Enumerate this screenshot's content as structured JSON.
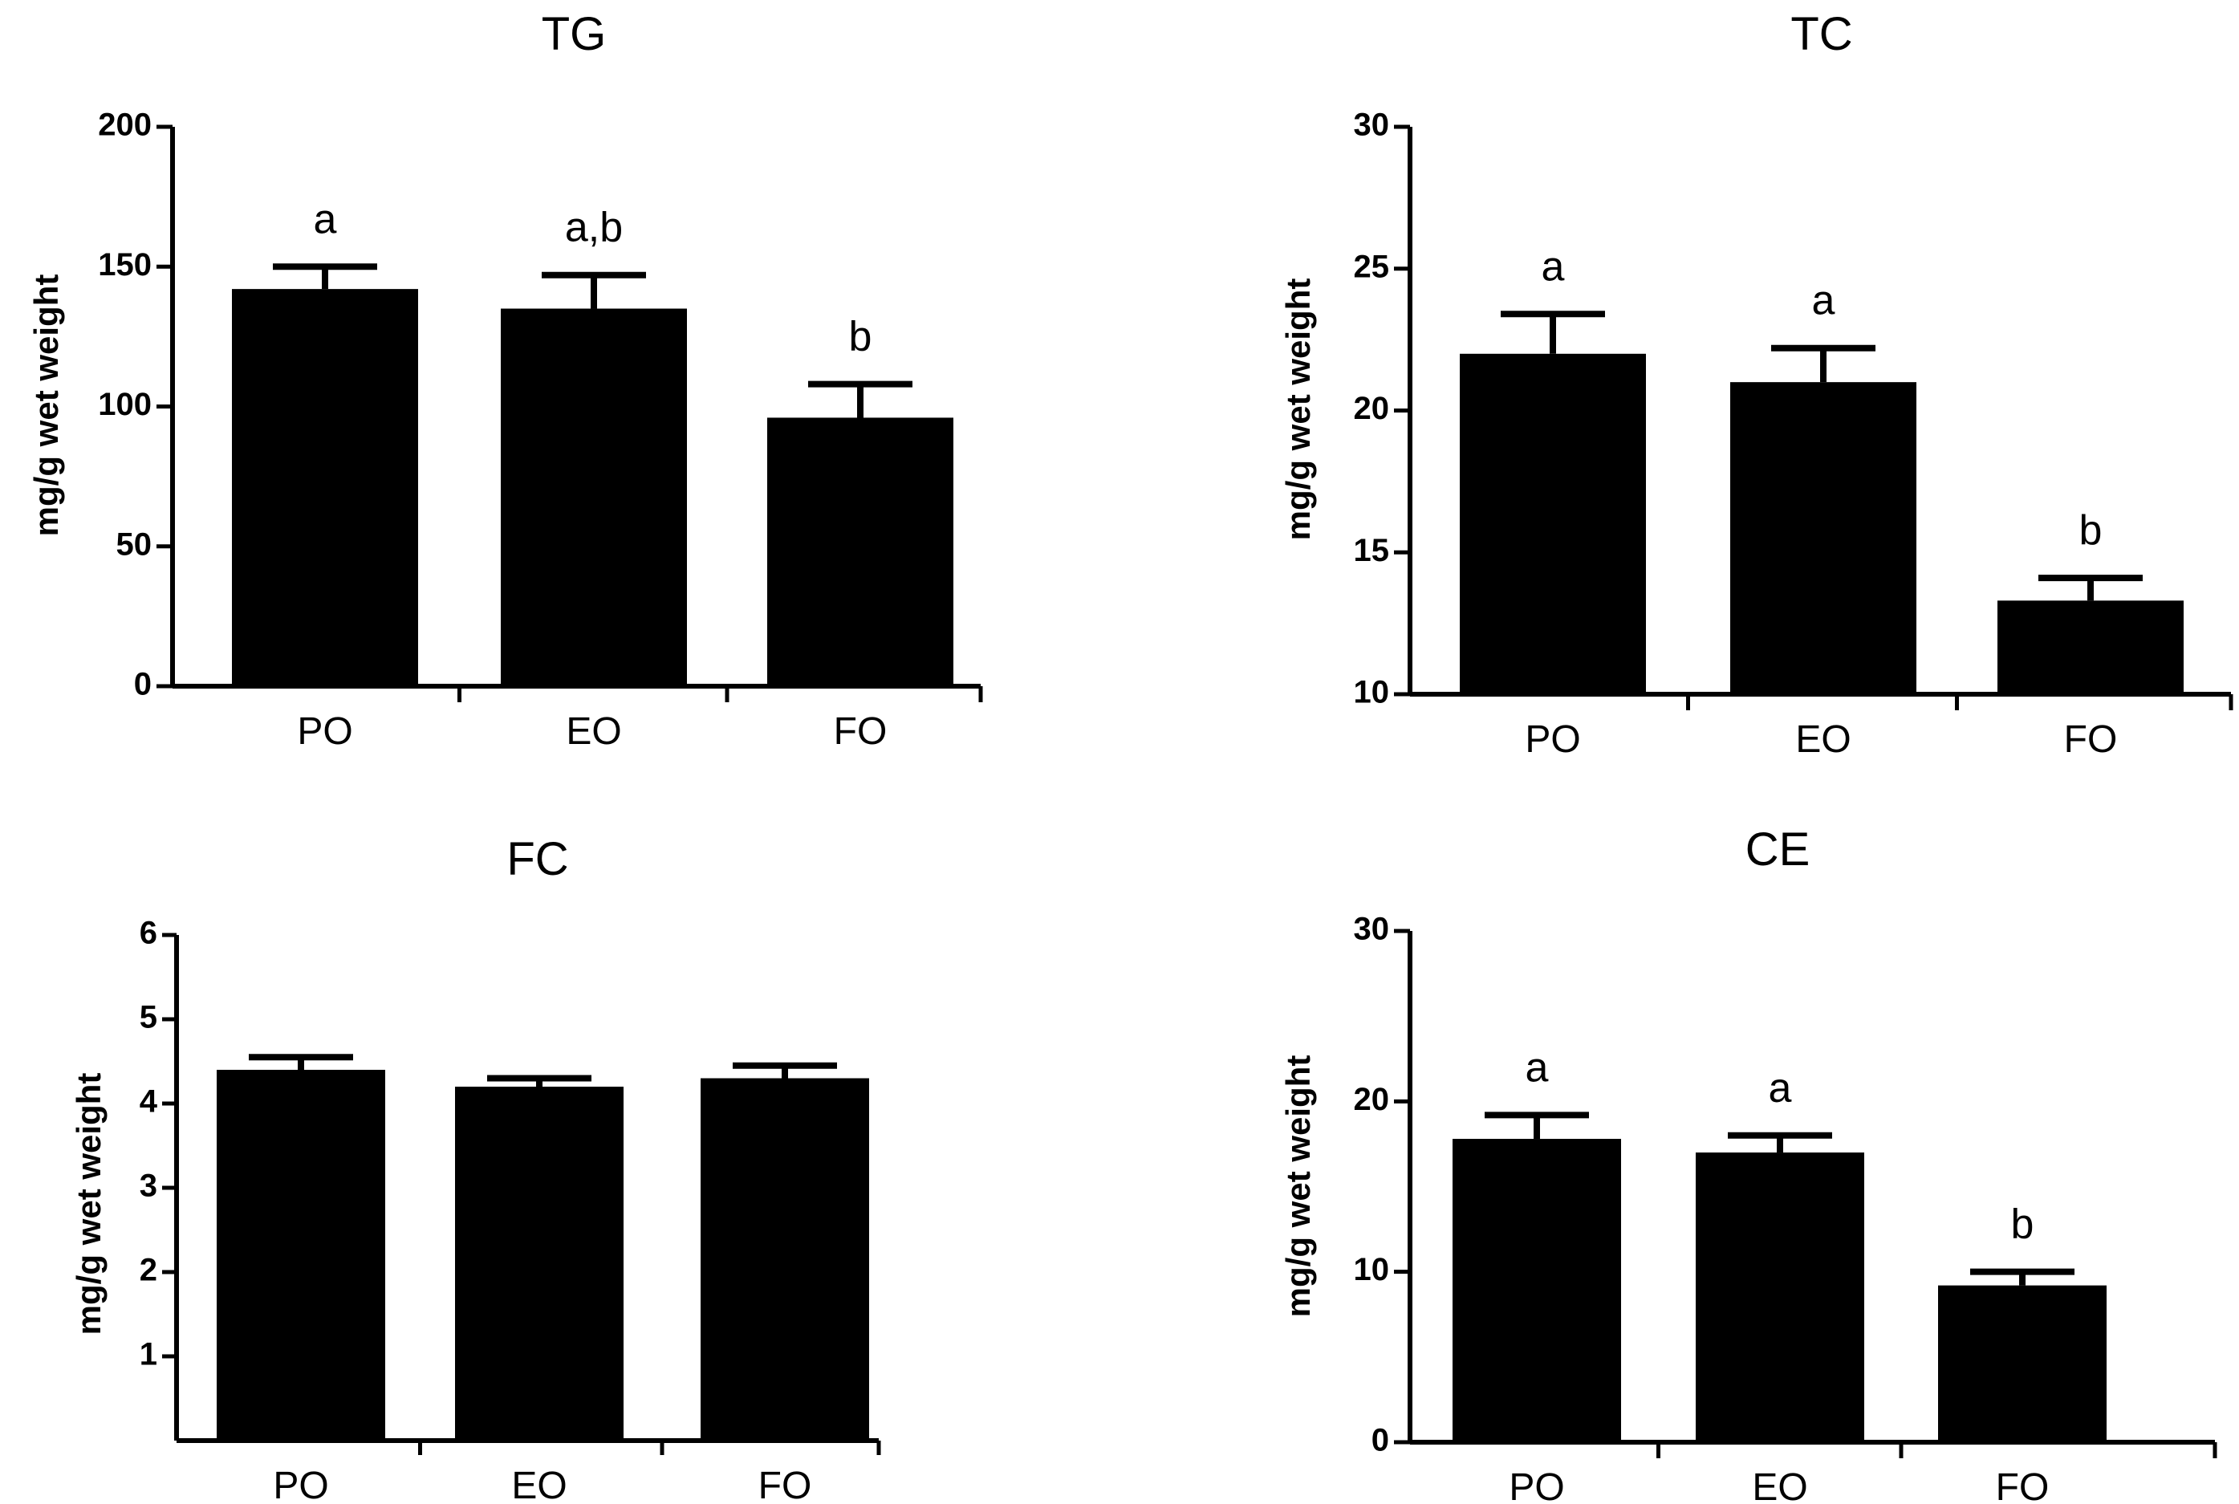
{
  "chart_data": [
    {
      "type": "bar",
      "title": "TG",
      "categories": [
        "PO",
        "EO",
        "FO"
      ],
      "values": [
        142,
        135,
        96
      ],
      "errors": [
        8,
        12,
        12
      ],
      "significance": [
        "a",
        "a,b",
        "b"
      ],
      "ylabel": "mg/g wet weight",
      "xlabel": "",
      "ylim": [
        0,
        200
      ],
      "yticks": [
        0,
        50,
        100,
        150,
        200
      ],
      "bar_color": "#000000"
    },
    {
      "type": "bar",
      "title": "TC",
      "categories": [
        "PO",
        "EO",
        "FO"
      ],
      "values": [
        22,
        21,
        13.3
      ],
      "errors": [
        1.4,
        1.2,
        0.8
      ],
      "significance": [
        "a",
        "a",
        "b"
      ],
      "ylabel": "mg/g wet weight",
      "xlabel": "",
      "ylim": [
        10,
        30
      ],
      "yticks": [
        10,
        15,
        20,
        25,
        30
      ],
      "bar_color": "#000000"
    },
    {
      "type": "bar",
      "title": "FC",
      "categories": [
        "PO",
        "EO",
        "FO"
      ],
      "values": [
        4.4,
        4.2,
        4.3
      ],
      "errors": [
        0.15,
        0.1,
        0.15
      ],
      "significance": [
        "",
        "",
        ""
      ],
      "ylabel": "mg/g wet weight",
      "xlabel": "",
      "ylim": [
        0,
        6
      ],
      "yticks": [
        1,
        2,
        3,
        4,
        5,
        6
      ],
      "bar_color": "#000000"
    },
    {
      "type": "bar",
      "title": "CE",
      "categories": [
        "PO",
        "EO",
        "FO"
      ],
      "values": [
        17.8,
        17,
        9.2
      ],
      "errors": [
        1.4,
        1,
        0.8
      ],
      "significance": [
        "a",
        "a",
        "b"
      ],
      "ylabel": "mg/g wet weight",
      "xlabel": "",
      "ylim": [
        0,
        30
      ],
      "yticks": [
        0,
        10,
        20,
        30
      ],
      "bar_color": "#000000"
    }
  ]
}
